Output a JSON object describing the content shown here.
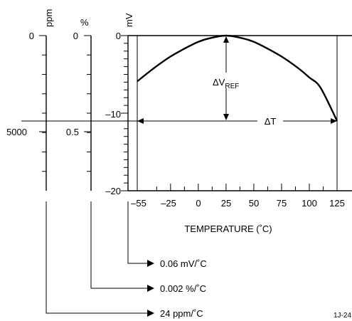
{
  "chart_data": {
    "type": "line",
    "xlabel": "TEMPERATURE (˚C)",
    "x_ticks": [
      "–55",
      "–25",
      "0",
      "25",
      "50",
      "75",
      "100",
      "125"
    ],
    "xlim": [
      -55,
      125
    ],
    "ylim": [
      -20,
      0
    ],
    "mv_axis": {
      "unit": "mV",
      "ticks": [
        "0",
        "–10",
        "–20"
      ]
    },
    "pct_axis": {
      "unit": "%",
      "ticks": [
        "0",
        "0.5"
      ]
    },
    "ppm_axis": {
      "unit": "ppm",
      "ticks": [
        "0",
        "5000"
      ]
    },
    "curve": {
      "x": [
        -55,
        -40,
        -25,
        -10,
        0,
        10,
        25,
        40,
        50,
        60,
        75,
        90,
        100,
        110,
        125
      ],
      "y": [
        -5.9,
        -4.2,
        -2.7,
        -1.5,
        -0.8,
        -0.35,
        0,
        -0.35,
        -0.8,
        -1.5,
        -2.7,
        -4.2,
        -5.4,
        -6.7,
        -11
      ]
    },
    "annotations": {
      "delta_v_main": "ΔV",
      "delta_v_sub": "REF",
      "delta_t": "ΔT"
    },
    "results": {
      "mv_per_c": "0.06 mV/˚C",
      "pct_per_c": "0.002 %/˚C",
      "ppm_per_c": "24 ppm/˚C"
    },
    "figure_id": "1J-24"
  }
}
